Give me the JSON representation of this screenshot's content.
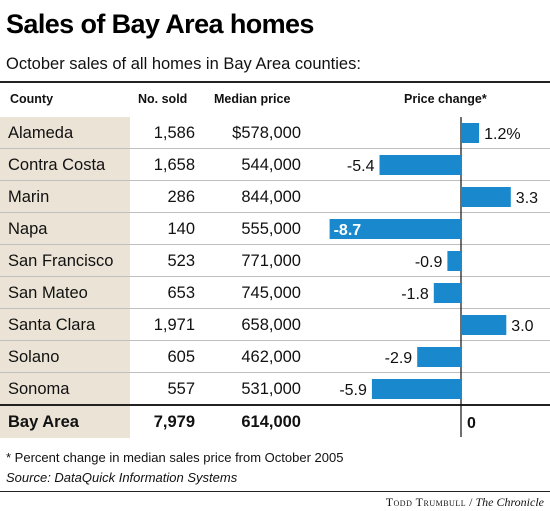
{
  "title": "Sales of Bay Area homes",
  "subtitle": "October sales of all homes in Bay Area counties:",
  "headers": {
    "county": "County",
    "sold": "No. sold",
    "median": "Median price",
    "change": "Price change*"
  },
  "rows": [
    {
      "county": "Alameda",
      "sold": "1,586",
      "median": "$578,000",
      "change": "1.2%"
    },
    {
      "county": "Contra Costa",
      "sold": "1,658",
      "median": "544,000",
      "change": "-5.4"
    },
    {
      "county": "Marin",
      "sold": "286",
      "median": "844,000",
      "change": "3.3"
    },
    {
      "county": "Napa",
      "sold": "140",
      "median": "555,000",
      "change": "-8.7"
    },
    {
      "county": "San Francisco",
      "sold": "523",
      "median": "771,000",
      "change": "-0.9"
    },
    {
      "county": "San Mateo",
      "sold": "653",
      "median": "745,000",
      "change": "-1.8"
    },
    {
      "county": "Santa Clara",
      "sold": "1,971",
      "median": "658,000",
      "change": "3.0"
    },
    {
      "county": "Solano",
      "sold": "605",
      "median": "462,000",
      "change": "-2.9"
    },
    {
      "county": "Sonoma",
      "sold": "557",
      "median": "531,000",
      "change": "-5.9"
    }
  ],
  "total": {
    "county": "Bay Area",
    "sold": "7,979",
    "median": "614,000",
    "change": "0"
  },
  "footnote": "* Percent change in median sales price from October 2005",
  "source": "Source: DataQuick Information Systems",
  "credit": {
    "name": "Todd Trumbull",
    "separator": " / ",
    "publication": "The Chronicle"
  },
  "colors": {
    "bar": "#1a88cc",
    "county_shade": "#ebe4d6"
  },
  "chart_data": {
    "type": "bar",
    "orientation": "horizontal",
    "categories": [
      "Alameda",
      "Contra Costa",
      "Marin",
      "Napa",
      "San Francisco",
      "San Mateo",
      "Santa Clara",
      "Solano",
      "Sonoma",
      "Bay Area"
    ],
    "values": [
      1.2,
      -5.4,
      3.3,
      -8.7,
      -0.9,
      -1.8,
      3.0,
      -2.9,
      -5.9,
      0
    ],
    "labels": [
      "1.2%",
      "-5.4",
      "3.3",
      "-8.7",
      "-0.9",
      "-1.8",
      "3.0",
      "-2.9",
      "-5.9",
      "0"
    ],
    "xlabel": "Price change*",
    "xlim": [
      -8.7,
      3.3
    ],
    "grid": false,
    "legend": "none"
  }
}
